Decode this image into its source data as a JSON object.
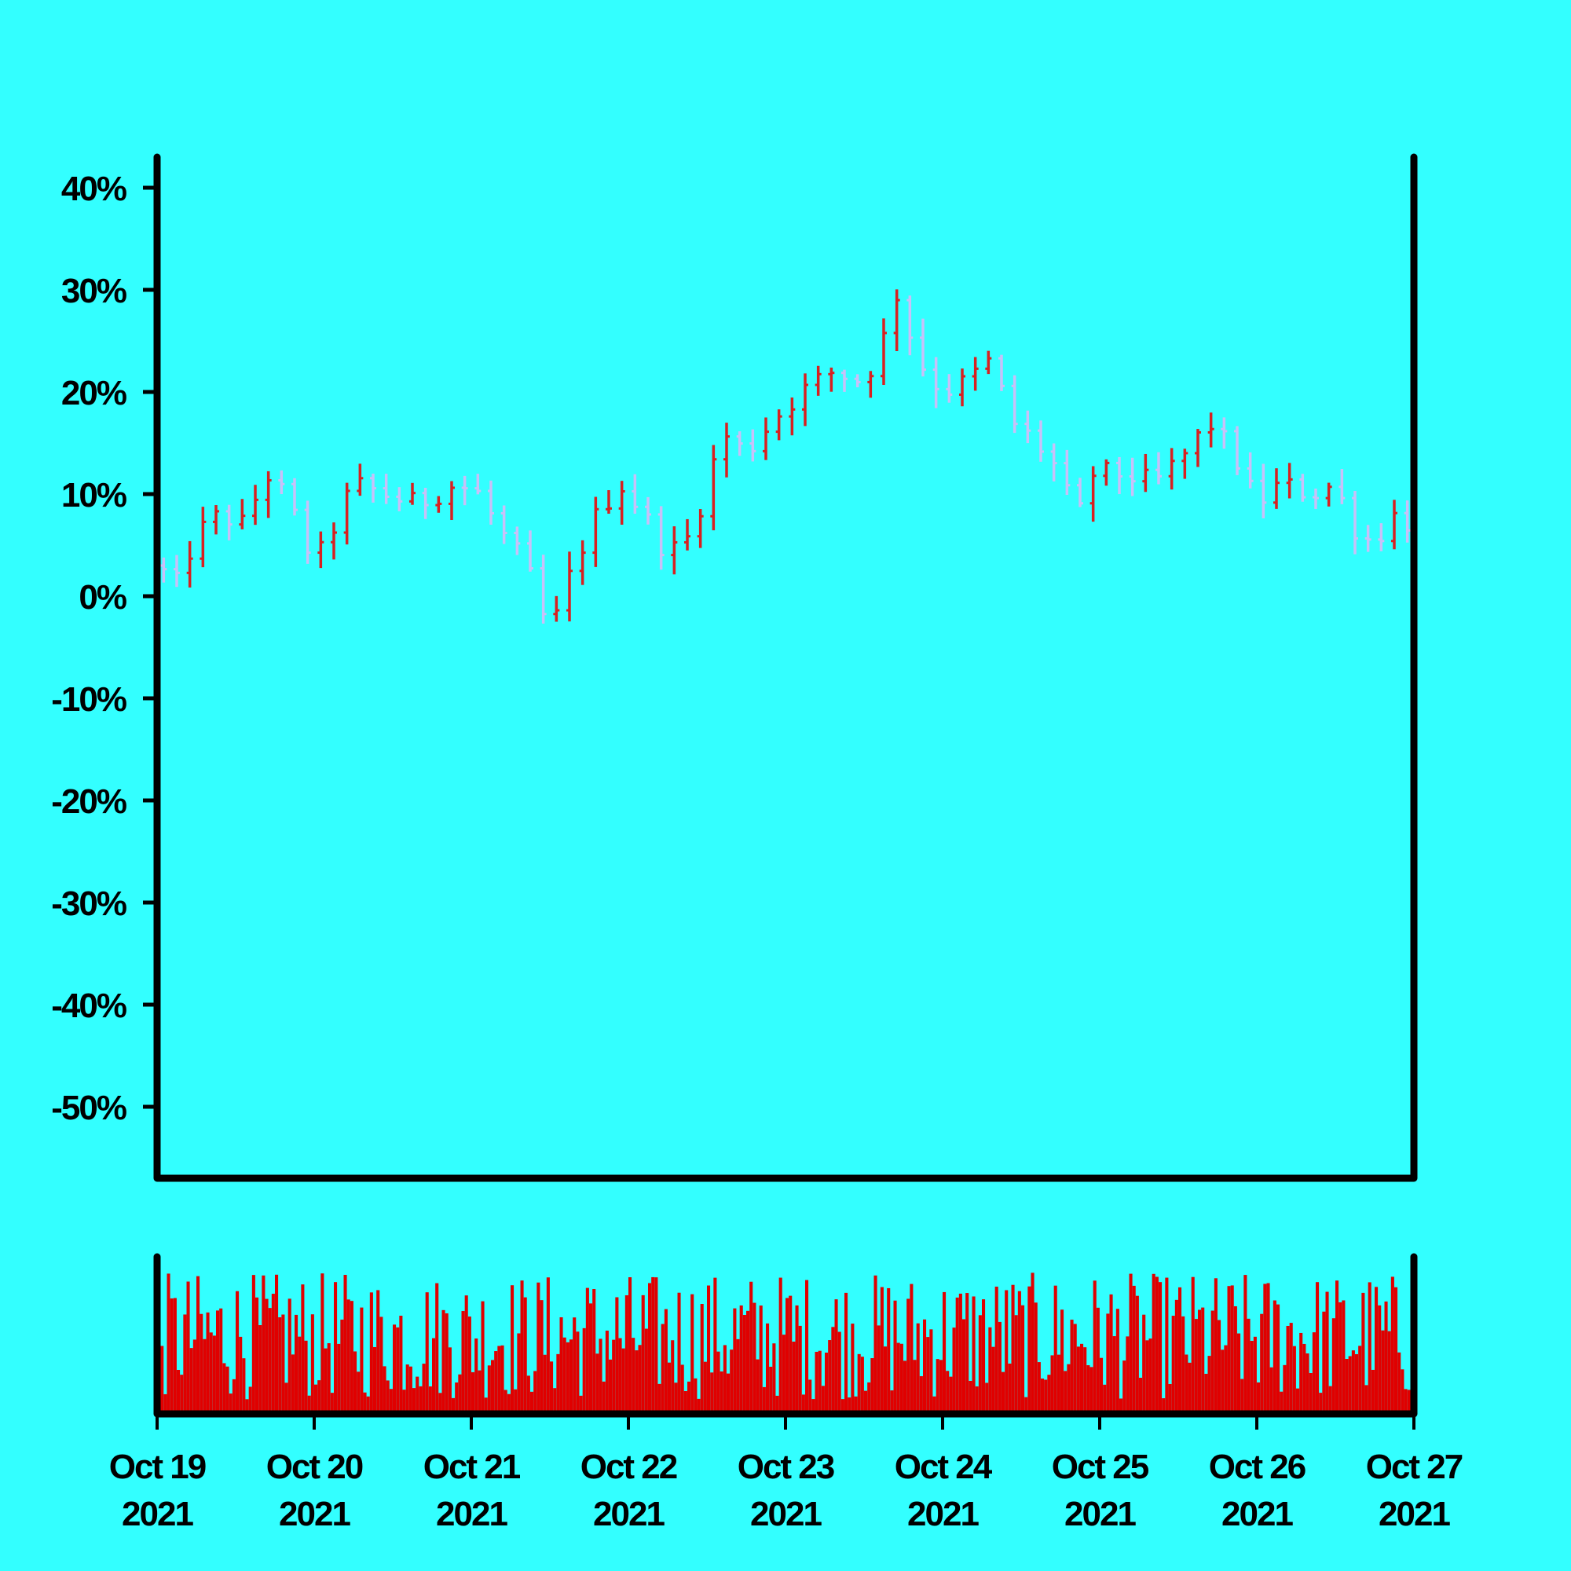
{
  "colors": {
    "background": "#33ffff",
    "frame": "#000000",
    "up": "#d82020",
    "down": "#c8c0f8",
    "volume": "#e00000"
  },
  "chart_data": {
    "type": "ohlc",
    "title": "",
    "xlabel": "",
    "ylabel": "",
    "y_tick_labels": [
      "40%",
      "30%",
      "20%",
      "10%",
      "0%",
      "-10%",
      "-20%",
      "-30%",
      "-40%",
      "-50%"
    ],
    "y_tick_values": [
      40,
      30,
      20,
      10,
      0,
      -10,
      -20,
      -30,
      -40,
      -50
    ],
    "ylim": [
      -57,
      43
    ],
    "x_ticks": [
      {
        "line1": "Oct 19",
        "line2": "2021",
        "date": "2021-10-19"
      },
      {
        "line1": "Oct 20",
        "line2": "2021",
        "date": "2021-10-20"
      },
      {
        "line1": "Oct 21",
        "line2": "2021",
        "date": "2021-10-21"
      },
      {
        "line1": "Oct 22",
        "line2": "2021",
        "date": "2021-10-22"
      },
      {
        "line1": "Oct 23",
        "line2": "2021",
        "date": "2021-10-23"
      },
      {
        "line1": "Oct 24",
        "line2": "2021",
        "date": "2021-10-24"
      },
      {
        "line1": "Oct 25",
        "line2": "2021",
        "date": "2021-10-25"
      },
      {
        "line1": "Oct 26",
        "line2": "2021",
        "date": "2021-10-26"
      },
      {
        "line1": "Oct 27",
        "line2": "2021",
        "date": "2021-10-27"
      }
    ],
    "xlim": [
      "2021-10-19",
      "2021-10-27"
    ],
    "close_path": [
      [
        0.0,
        3
      ],
      [
        0.12,
        1
      ],
      [
        0.25,
        6
      ],
      [
        0.4,
        8
      ],
      [
        0.55,
        7
      ],
      [
        0.7,
        12
      ],
      [
        0.8,
        10
      ],
      [
        0.9,
        7
      ],
      [
        1.0,
        3
      ],
      [
        1.1,
        6
      ],
      [
        1.25,
        11
      ],
      [
        1.45,
        10
      ],
      [
        1.65,
        9
      ],
      [
        1.9,
        11
      ],
      [
        2.05,
        10
      ],
      [
        2.2,
        6
      ],
      [
        2.35,
        3
      ],
      [
        2.5,
        -4
      ],
      [
        2.65,
        3
      ],
      [
        2.8,
        8
      ],
      [
        2.95,
        11
      ],
      [
        3.1,
        8
      ],
      [
        3.25,
        4
      ],
      [
        3.4,
        6
      ],
      [
        3.6,
        16
      ],
      [
        3.75,
        14
      ],
      [
        3.9,
        17
      ],
      [
        4.1,
        20
      ],
      [
        4.3,
        22
      ],
      [
        4.5,
        21
      ],
      [
        4.62,
        25
      ],
      [
        4.7,
        30
      ],
      [
        4.85,
        23
      ],
      [
        5.0,
        20
      ],
      [
        5.15,
        21
      ],
      [
        5.3,
        23
      ],
      [
        5.45,
        17
      ],
      [
        5.6,
        15
      ],
      [
        5.75,
        12
      ],
      [
        5.85,
        7
      ],
      [
        5.95,
        12
      ],
      [
        6.15,
        12
      ],
      [
        6.35,
        11
      ],
      [
        6.55,
        14
      ],
      [
        6.7,
        17
      ],
      [
        6.85,
        14
      ],
      [
        7.0,
        9
      ],
      [
        7.15,
        11
      ],
      [
        7.35,
        10
      ],
      [
        7.5,
        11
      ],
      [
        7.6,
        7
      ],
      [
        7.75,
        5
      ],
      [
        7.85,
        8
      ],
      [
        8.0,
        7
      ]
    ],
    "volume_note": "volume bars shown without a labelled axis"
  }
}
